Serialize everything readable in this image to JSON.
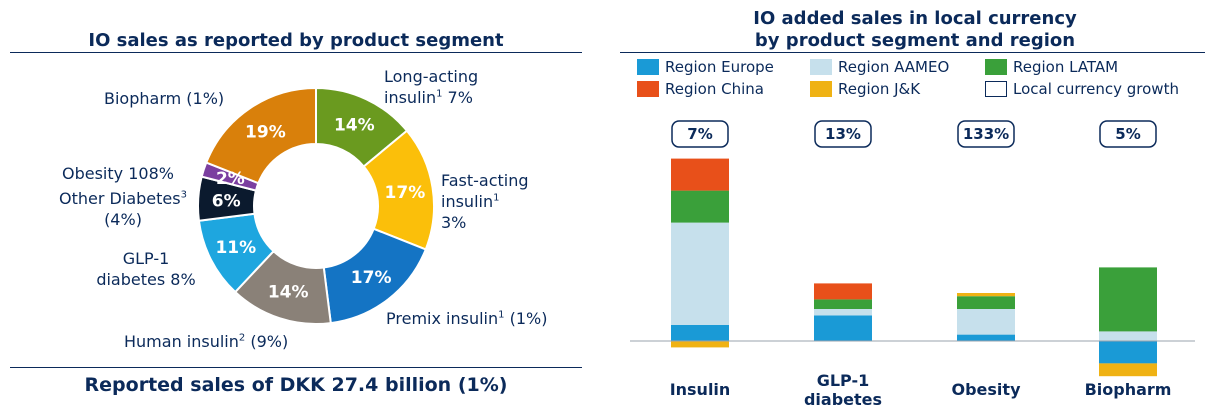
{
  "left_panel": {
    "title": "IO sales as reported by product segment",
    "bottom_note": "Reported sales of DKK 27.4 billion (1%)",
    "labels": {
      "long_acting": {
        "text": "Long-acting",
        "line2": "insulin",
        "sup": "1",
        "tail": " 7%"
      },
      "fast_acting": {
        "text": "Fast-acting",
        "line2": "insulin",
        "sup": "1",
        "line3": "3%"
      },
      "premix": {
        "text": "Premix insulin",
        "sup": "1",
        "tail": " (1%)"
      },
      "human": {
        "text": "Human insulin",
        "sup": "2",
        "tail": " (9%)"
      },
      "glp1": {
        "text": "GLP-1",
        "line2": "diabetes 8%"
      },
      "other_diabetes": {
        "text": "Other Diabetes",
        "sup": "3",
        "line2": "(4%)"
      },
      "obesity": {
        "text": "Obesity 108%"
      },
      "biopharm": {
        "text": "Biopharm (1%)"
      }
    }
  },
  "right_panel": {
    "title_line1": "IO added sales in local currency",
    "title_line2": "by product segment and region",
    "legend": [
      {
        "label": "Region Europe",
        "color": "#1a9ad6",
        "outline": false
      },
      {
        "label": "Region AAMEO",
        "color": "#c6e0ec",
        "outline": false
      },
      {
        "label": "Region LATAM",
        "color": "#3aa03a",
        "outline": false
      },
      {
        "label": "Region China",
        "color": "#e8501a",
        "outline": false
      },
      {
        "label": "Region J&K",
        "color": "#efb214",
        "outline": false
      },
      {
        "label": "Local currency growth",
        "color": "#ffffff",
        "outline": true
      }
    ]
  },
  "chart_data": [
    {
      "type": "pie",
      "title": "IO sales as reported by product segment",
      "categories": [
        "Long-acting insulin",
        "Fast-acting insulin",
        "Premix insulin",
        "Human insulin",
        "GLP-1 diabetes",
        "Other Diabetes",
        "Obesity",
        "Biopharm"
      ],
      "values": [
        14,
        17,
        17,
        14,
        11,
        6,
        2,
        19
      ],
      "value_labels": [
        "14%",
        "17%",
        "17%",
        "14%",
        "11%",
        "6%",
        "2%",
        "19%"
      ],
      "colors": [
        "#6a9a1f",
        "#fbbf0a",
        "#1474c4",
        "#8a8178",
        "#1ea6df",
        "#0b1a2e",
        "#7b3fa0",
        "#d9800b"
      ],
      "donut": true
    },
    {
      "type": "bar",
      "stacked": true,
      "title": "IO added sales in local currency by product segment and region",
      "categories": [
        "Insulin",
        "GLP-1 diabetes",
        "Obesity",
        "Biopharm"
      ],
      "category_label_lines": [
        [
          "Insulin"
        ],
        [
          "GLP-1",
          "diabetes"
        ],
        [
          "Obesity"
        ],
        [
          "Biopharm"
        ]
      ],
      "growth_labels": [
        "7%",
        "13%",
        "133%",
        "5%"
      ],
      "series": [
        {
          "name": "Region Europe",
          "color": "#1a9ad6",
          "values": [
            5,
            8,
            2,
            -7
          ]
        },
        {
          "name": "Region AAMEO",
          "color": "#c6e0ec",
          "values": [
            32,
            2,
            8,
            3
          ]
        },
        {
          "name": "Region LATAM",
          "color": "#3aa03a",
          "values": [
            10,
            3,
            4,
            20
          ]
        },
        {
          "name": "Region China",
          "color": "#e8501a",
          "values": [
            10,
            5,
            0,
            0
          ]
        },
        {
          "name": "Region J&K",
          "color": "#efb214",
          "values": [
            -2,
            0,
            1,
            -4
          ]
        }
      ]
    }
  ]
}
